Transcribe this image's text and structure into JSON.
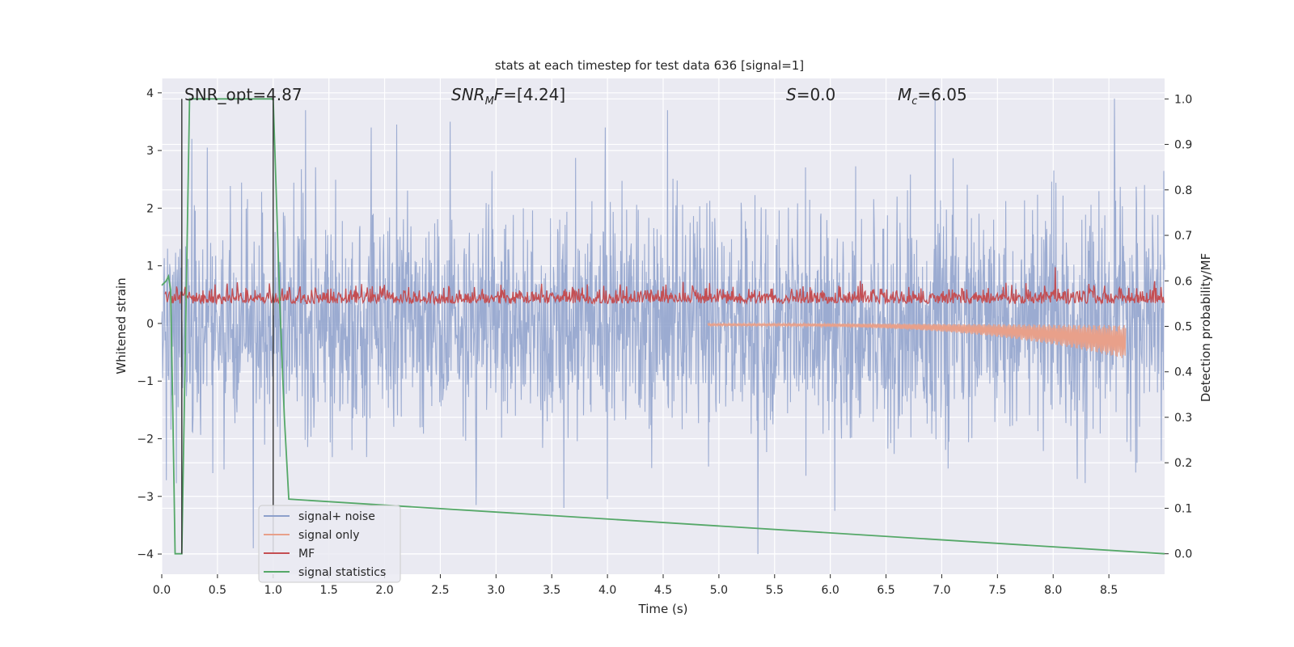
{
  "chart_data": {
    "type": "line",
    "title": "stats at each timestep for test data 636 [signal=1]",
    "xlabel": "Time (s)",
    "ylabel": "Whitened strain",
    "y2label": "Detection probability/MF",
    "xlim": [
      0.0,
      9.0
    ],
    "ylim": [
      -4.35,
      4.25
    ],
    "y2lim": [
      -0.045,
      1.045
    ],
    "xticks": [
      0.0,
      0.5,
      1.0,
      1.5,
      2.0,
      2.5,
      3.0,
      3.5,
      4.0,
      4.5,
      5.0,
      5.5,
      6.0,
      6.5,
      7.0,
      7.5,
      8.0,
      8.5
    ],
    "xtick_labels": [
      "0.0",
      "0.5",
      "1.0",
      "1.5",
      "2.0",
      "2.5",
      "3.0",
      "3.5",
      "4.0",
      "4.5",
      "5.0",
      "5.5",
      "6.0",
      "6.5",
      "7.0",
      "7.5",
      "8.0",
      "8.5"
    ],
    "yticks": [
      -4,
      -3,
      -2,
      -1,
      0,
      1,
      2,
      3,
      4
    ],
    "ytick_labels": [
      "−4",
      "−3",
      "−2",
      "−1",
      "0",
      "1",
      "2",
      "3",
      "4"
    ],
    "y2ticks": [
      0.0,
      0.1,
      0.2,
      0.3,
      0.4,
      0.5,
      0.6,
      0.7,
      0.8,
      0.9,
      1.0
    ],
    "y2tick_labels": [
      "0.0",
      "0.1",
      "0.2",
      "0.3",
      "0.4",
      "0.5",
      "0.6",
      "0.7",
      "0.8",
      "0.9",
      "1.0"
    ],
    "grid": true,
    "legend_position": "lower-left",
    "annotations": [
      "SNR_opt=4.87",
      "SNR_M F=[4.24]",
      "S=0.0",
      "M_c=6.05"
    ],
    "vlines": [
      0.18,
      1.0
    ],
    "series": [
      {
        "name": "signal+ noise",
        "color": "#8da0cb",
        "axis": "left",
        "description_values": "noise-dominated strain, roughly -3 to 3.9",
        "spikes": [
          [
            0.27,
            3.2
          ],
          [
            0.41,
            3.05
          ],
          [
            1.29,
            3.7
          ],
          [
            1.88,
            3.4
          ],
          [
            2.11,
            3.45
          ],
          [
            2.59,
            3.5
          ],
          [
            3.98,
            3.4
          ],
          [
            4.54,
            3.7
          ],
          [
            6.94,
            3.9
          ],
          [
            8.55,
            3.9
          ],
          [
            5.35,
            -4.0
          ],
          [
            0.82,
            -3.9
          ],
          [
            2.82,
            -3.15
          ],
          [
            4.0,
            -3.05
          ],
          [
            6.04,
            -3.25
          ],
          [
            3.61,
            -3.2
          ]
        ]
      },
      {
        "name": "signal only",
        "color": "#e8a08a",
        "axis": "left",
        "chirp_start": 4.9,
        "chirp_end": 8.65,
        "peak_min": -0.62,
        "peak_max": 0.28
      },
      {
        "name": "MF",
        "color": "#c44e52",
        "axis": "right",
        "baseline": 0.55,
        "max": 0.63
      },
      {
        "name": "signal statistics",
        "color": "#55a868",
        "axis": "right",
        "x": [
          0.0,
          0.04,
          0.06,
          0.08,
          0.1,
          0.12,
          0.18,
          0.25,
          0.26,
          1.0,
          1.06,
          1.1,
          1.14,
          9.0
        ],
        "y": [
          0.59,
          0.6,
          0.61,
          0.58,
          0.3,
          0.0,
          0.0,
          1.0,
          1.0,
          1.0,
          0.55,
          0.3,
          0.12,
          0.0
        ]
      }
    ]
  }
}
